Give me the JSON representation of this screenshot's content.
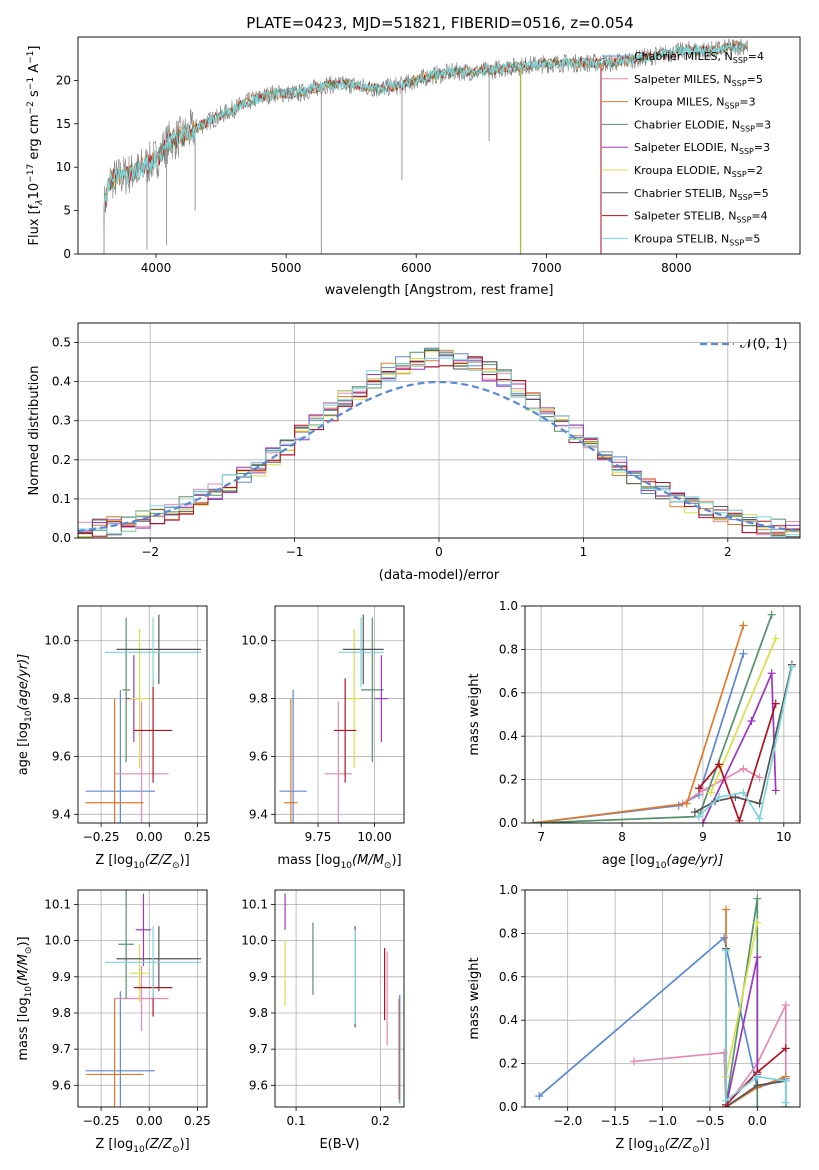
{
  "figure_title": "PLATE=0423, MJD=51821, FIBERID=0516, z=0.054",
  "colors": {
    "chabrier_miles": "#5b87d6",
    "salpeter_miles": "#e68ab5",
    "kroupa_miles": "#e07a2a",
    "chabrier_elodie": "#55926a",
    "salpeter_elodie": "#9b37c0",
    "kroupa_elodie": "#d8e04a",
    "chabrier_stelib": "#555555",
    "salpeter_stelib": "#b3121e",
    "kroupa_stelib": "#7cd6dc",
    "data": "#808080",
    "normal": "#5b87d6"
  },
  "chart_data": [
    {
      "id": "spectrum",
      "type": "line",
      "xlabel": "wavelength [Angstrom, rest frame]",
      "ylabel": "Flux [f",
      "ylabel_parts": [
        "10",
        "−17",
        " erg cm",
        "−2",
        " s",
        "−1",
        " A",
        "−1",
        "]"
      ],
      "xlim": [
        3400,
        8950
      ],
      "ylim": [
        0,
        25
      ],
      "xticks": [
        4000,
        5000,
        6000,
        7000,
        8000
      ],
      "yticks": [
        0,
        5,
        10,
        15,
        20
      ],
      "grid": false,
      "legend_placement": "upper-right",
      "legend": [
        {
          "name": "Chabrier MILES, N",
          "sub": "SSP",
          "suffix": "=4",
          "color": "chabrier_miles"
        },
        {
          "name": "Salpeter MILES, N",
          "sub": "SSP",
          "suffix": "=5",
          "color": "salpeter_miles"
        },
        {
          "name": "Kroupa MILES, N",
          "sub": "SSP",
          "suffix": "=3",
          "color": "kroupa_miles"
        },
        {
          "name": "Chabrier ELODIE, N",
          "sub": "SSP",
          "suffix": "=3",
          "color": "chabrier_elodie"
        },
        {
          "name": "Salpeter ELODIE, N",
          "sub": "SSP",
          "suffix": "=3",
          "color": "salpeter_elodie"
        },
        {
          "name": "Kroupa ELODIE, N",
          "sub": "SSP",
          "suffix": "=2",
          "color": "kroupa_elodie"
        },
        {
          "name": "Chabrier STELIB, N",
          "sub": "SSP",
          "suffix": "=5",
          "color": "chabrier_stelib"
        },
        {
          "name": "Salpeter STELIB, N",
          "sub": "SSP",
          "suffix": "=4",
          "color": "salpeter_stelib"
        },
        {
          "name": "Kroupa STELIB, N",
          "sub": "SSP",
          "suffix": "=5",
          "color": "kroupa_stelib"
        }
      ],
      "continuum": [
        [
          3600,
          5.5
        ],
        [
          3650,
          8.5
        ],
        [
          3750,
          9
        ],
        [
          3850,
          9.5
        ],
        [
          3950,
          10.5
        ],
        [
          4000,
          11
        ],
        [
          4100,
          13
        ],
        [
          4200,
          13.5
        ],
        [
          4300,
          14.5
        ],
        [
          4500,
          16
        ],
        [
          4700,
          17.5
        ],
        [
          4900,
          18.5
        ],
        [
          5100,
          18.5
        ],
        [
          5300,
          19.5
        ],
        [
          5500,
          19.5
        ],
        [
          5700,
          19
        ],
        [
          5900,
          19.5
        ],
        [
          6100,
          20.5
        ],
        [
          6300,
          21
        ],
        [
          6500,
          21
        ],
        [
          6700,
          21.5
        ],
        [
          6900,
          21.8
        ],
        [
          7100,
          22
        ],
        [
          7300,
          22
        ],
        [
          7500,
          22
        ],
        [
          7700,
          22.5
        ],
        [
          7900,
          23
        ],
        [
          8100,
          23.5
        ],
        [
          8300,
          23.5
        ],
        [
          8500,
          24
        ]
      ],
      "data_spikes": [
        [
          3600,
          0
        ],
        [
          3930,
          0.5
        ],
        [
          4080,
          1
        ],
        [
          4300,
          5
        ],
        [
          5270,
          0
        ],
        [
          5890,
          8.5
        ],
        [
          6560,
          13
        ],
        [
          6800,
          0
        ],
        [
          7420,
          0
        ]
      ]
    },
    {
      "id": "residuals",
      "type": "histogram",
      "xlabel": "(data-model)/error",
      "ylabel": "Normed distribution",
      "xlim": [
        -2.5,
        2.5
      ],
      "ylim": [
        0,
        0.55
      ],
      "xticks": [
        -2,
        -1,
        0,
        1,
        2
      ],
      "xtick_labels": [
        "−2",
        "−1",
        "0",
        "1",
        "2"
      ],
      "yticks": [
        0.0,
        0.1,
        0.2,
        0.3,
        0.4,
        0.5
      ],
      "ytick_labels": [
        "0.0",
        "0.1",
        "0.2",
        "0.3",
        "0.4",
        "0.5"
      ],
      "grid": true,
      "legend_placement": "upper-right",
      "legend_label": "𝒩(0, 1)",
      "bin_width": 0.1,
      "bin_start": -2.5,
      "base_mean": 0,
      "base_sigma": 1
    },
    {
      "id": "age_vs_Z",
      "type": "errorbar",
      "xlabel": "Z [log",
      "xlabel_rest": "(Z/Z",
      "ylabel": "age  [log",
      "ylabel_rest": "(age/yr)]",
      "xlim": [
        -0.37,
        0.3
      ],
      "ylim": [
        9.37,
        10.12
      ],
      "xticks": [
        -0.25,
        0.0,
        0.25
      ],
      "xtick_labels": [
        "−0.25",
        "0.00",
        "0.25"
      ],
      "yticks": [
        9.4,
        9.6,
        9.8,
        10.0
      ],
      "ytick_labels": [
        "9.4",
        "9.6",
        "9.8",
        "10.0"
      ],
      "grid": true,
      "points": [
        {
          "c": "chabrier_miles",
          "x": -0.15,
          "xe": 0.18,
          "y": 9.48,
          "ye": 0.35
        },
        {
          "c": "salpeter_miles",
          "x": -0.04,
          "xe": 0.14,
          "y": 9.54,
          "ye": 0.25
        },
        {
          "c": "kroupa_miles",
          "x": -0.18,
          "xe": 0.15,
          "y": 9.44,
          "ye": 0.36
        },
        {
          "c": "chabrier_elodie",
          "x": -0.12,
          "xe": 0.02,
          "y": 9.83,
          "ye": 0.25
        },
        {
          "c": "salpeter_elodie",
          "x": -0.08,
          "xe": 0.04,
          "y": 9.8,
          "ye": 0.15
        },
        {
          "c": "kroupa_elodie",
          "x": -0.05,
          "xe": 0.05,
          "y": 9.8,
          "ye": 0.24
        },
        {
          "c": "chabrier_stelib",
          "x": 0.05,
          "xe": 0.22,
          "y": 9.97,
          "ye": 0.12
        },
        {
          "c": "salpeter_stelib",
          "x": 0.02,
          "xe": 0.1,
          "y": 9.69,
          "ye": 0.18
        },
        {
          "c": "kroupa_stelib",
          "x": 0.02,
          "xe": 0.25,
          "y": 9.96,
          "ye": 0.12
        }
      ]
    },
    {
      "id": "age_vs_mass",
      "type": "errorbar",
      "xlabel": "mass [log",
      "xlabel_rest": "(M/M",
      "xlim": [
        9.56,
        10.13
      ],
      "ylim": [
        9.37,
        10.12
      ],
      "xticks": [
        9.75,
        10.0
      ],
      "xtick_labels": [
        "9.75",
        "10.00"
      ],
      "yticks": [
        9.4,
        9.6,
        9.8,
        10.0
      ],
      "ytick_labels": [
        "9.4",
        "9.6",
        "9.8",
        "10.0"
      ],
      "grid": true,
      "points": [
        {
          "c": "chabrier_miles",
          "x": 9.64,
          "xe": 0.06,
          "y": 9.48,
          "ye": 0.35
        },
        {
          "c": "salpeter_miles",
          "x": 9.84,
          "xe": 0.06,
          "y": 9.54,
          "ye": 0.25
        },
        {
          "c": "kroupa_miles",
          "x": 9.63,
          "xe": 0.03,
          "y": 9.44,
          "ye": 0.36
        },
        {
          "c": "chabrier_elodie",
          "x": 9.99,
          "xe": 0.05,
          "y": 9.83,
          "ye": 0.25
        },
        {
          "c": "salpeter_elodie",
          "x": 10.03,
          "xe": 0.03,
          "y": 9.8,
          "ye": 0.15
        },
        {
          "c": "kroupa_elodie",
          "x": 9.91,
          "xe": 0.03,
          "y": 9.8,
          "ye": 0.24
        },
        {
          "c": "chabrier_stelib",
          "x": 9.95,
          "xe": 0.09,
          "y": 9.97,
          "ye": 0.12
        },
        {
          "c": "salpeter_stelib",
          "x": 9.87,
          "xe": 0.05,
          "y": 9.69,
          "ye": 0.18
        },
        {
          "c": "kroupa_stelib",
          "x": 9.94,
          "xe": 0.1,
          "y": 9.96,
          "ye": 0.12
        }
      ]
    },
    {
      "id": "mass_weight_vs_age",
      "type": "line",
      "xlabel": "age  [log",
      "xlabel_rest": "(age/yr)]",
      "ylabel": "mass weight",
      "xlim": [
        6.8,
        10.2
      ],
      "ylim": [
        0,
        1.0
      ],
      "xticks": [
        7,
        8,
        9,
        10
      ],
      "xtick_labels": [
        "7",
        "8",
        "9",
        "10"
      ],
      "yticks": [
        0.0,
        0.2,
        0.4,
        0.6,
        0.8,
        1.0
      ],
      "ytick_labels": [
        "0.0",
        "0.2",
        "0.4",
        "0.6",
        "0.8",
        "1.0"
      ],
      "grid": true,
      "series": [
        {
          "c": "chabrier_miles",
          "x": [
            6.9,
            8.7,
            8.95,
            9.5
          ],
          "y": [
            0.0,
            0.08,
            0.13,
            0.78
          ]
        },
        {
          "c": "salpeter_miles",
          "x": [
            8.75,
            9.0,
            9.25,
            9.5,
            9.7
          ],
          "y": [
            0.09,
            0.15,
            0.2,
            0.25,
            0.21
          ]
        },
        {
          "c": "kroupa_miles",
          "x": [
            6.9,
            8.8,
            9.5
          ],
          "y": [
            0.0,
            0.09,
            0.91
          ]
        },
        {
          "c": "chabrier_elodie",
          "x": [
            6.9,
            8.95,
            9.85
          ],
          "y": [
            0.0,
            0.03,
            0.96
          ]
        },
        {
          "c": "salpeter_elodie",
          "x": [
            9.0,
            9.6,
            9.85,
            9.9
          ],
          "y": [
            0.0,
            0.47,
            0.69,
            0.15
          ]
        },
        {
          "c": "kroupa_elodie",
          "x": [
            9.1,
            9.9
          ],
          "y": [
            0.14,
            0.85
          ]
        },
        {
          "c": "chabrier_stelib",
          "x": [
            8.9,
            9.15,
            9.4,
            9.7,
            10.1
          ],
          "y": [
            0.05,
            0.1,
            0.12,
            0.09,
            0.73
          ]
        },
        {
          "c": "salpeter_stelib",
          "x": [
            8.95,
            9.2,
            9.45,
            9.9
          ],
          "y": [
            0.16,
            0.27,
            0.01,
            0.55
          ]
        },
        {
          "c": "kroupa_stelib",
          "x": [
            8.95,
            9.2,
            9.5,
            9.7,
            10.1
          ],
          "y": [
            0.03,
            0.12,
            0.14,
            0.02,
            0.72
          ]
        }
      ]
    },
    {
      "id": "mass_vs_Z",
      "type": "errorbar",
      "xlabel": "Z [log",
      "xlabel_rest": "(Z/Z",
      "ylabel": "mass [log",
      "ylabel_rest": "(M/M",
      "xlim": [
        -0.37,
        0.3
      ],
      "ylim": [
        9.54,
        10.14
      ],
      "xticks": [
        -0.25,
        0.0,
        0.25
      ],
      "xtick_labels": [
        "−0.25",
        "0.00",
        "0.25"
      ],
      "yticks": [
        9.6,
        9.7,
        9.8,
        9.9,
        10.0,
        10.1
      ],
      "ytick_labels": [
        "9.6",
        "9.7",
        "9.8",
        "9.9",
        "10.0",
        "10.1"
      ],
      "grid": true,
      "points": [
        {
          "c": "chabrier_miles",
          "x": -0.15,
          "xe": 0.18,
          "y": 9.64,
          "ye": 0.22
        },
        {
          "c": "salpeter_miles",
          "x": -0.04,
          "xe": 0.14,
          "y": 9.84,
          "ye": 0.09
        },
        {
          "c": "kroupa_miles",
          "x": -0.18,
          "xe": 0.15,
          "y": 9.63,
          "ye": 0.21
        },
        {
          "c": "chabrier_elodie",
          "x": -0.12,
          "xe": 0.04,
          "y": 9.99,
          "ye": 0.15
        },
        {
          "c": "salpeter_elodie",
          "x": -0.03,
          "xe": 0.04,
          "y": 10.03,
          "ye": 0.1
        },
        {
          "c": "kroupa_elodie",
          "x": -0.05,
          "xe": 0.05,
          "y": 9.91,
          "ye": 0.08
        },
        {
          "c": "chabrier_stelib",
          "x": 0.05,
          "xe": 0.22,
          "y": 9.95,
          "ye": 0.09
        },
        {
          "c": "salpeter_stelib",
          "x": 0.02,
          "xe": 0.1,
          "y": 9.87,
          "ye": 0.08
        },
        {
          "c": "kroupa_stelib",
          "x": 0.02,
          "xe": 0.25,
          "y": 9.94,
          "ye": 0.1
        }
      ]
    },
    {
      "id": "mass_vs_EBV",
      "type": "errorbar",
      "xlabel": "E(B-V)",
      "xlim": [
        0.075,
        0.228
      ],
      "ylim": [
        9.54,
        10.14
      ],
      "xticks": [
        0.1,
        0.2
      ],
      "xtick_labels": [
        "0.1",
        "0.2"
      ],
      "yticks": [
        9.6,
        9.7,
        9.8,
        9.9,
        10.0,
        10.1
      ],
      "ytick_labels": [
        "9.6",
        "9.7",
        "9.8",
        "9.9",
        "10.0",
        "10.1"
      ],
      "grid": true,
      "points": [
        {
          "c": "salpeter_elodie",
          "x": 0.087,
          "xe": 0,
          "y": 10.08,
          "ye": 0.05
        },
        {
          "c": "kroupa_elodie",
          "x": 0.087,
          "xe": 0,
          "y": 9.91,
          "ye": 0.09
        },
        {
          "c": "chabrier_elodie",
          "x": 0.12,
          "xe": 0,
          "y": 9.95,
          "ye": 0.1
        },
        {
          "c": "chabrier_stelib",
          "x": 0.17,
          "xe": 0,
          "y": 9.9,
          "ye": 0.14
        },
        {
          "c": "kroupa_stelib",
          "x": 0.17,
          "xe": 0,
          "y": 9.9,
          "ye": 0.13
        },
        {
          "c": "salpeter_stelib",
          "x": 0.205,
          "xe": 0,
          "y": 9.88,
          "ye": 0.1
        },
        {
          "c": "salpeter_miles",
          "x": 0.208,
          "xe": 0,
          "y": 9.84,
          "ye": 0.13
        },
        {
          "c": "kroupa_miles",
          "x": 0.222,
          "xe": 0,
          "y": 9.7,
          "ye": 0.14
        },
        {
          "c": "chabrier_miles",
          "x": 0.223,
          "xe": 0,
          "y": 9.7,
          "ye": 0.15
        }
      ]
    },
    {
      "id": "mass_weight_vs_Z",
      "type": "line",
      "xlabel": "Z [log",
      "xlabel_rest": "(Z/Z",
      "ylabel": "mass weight",
      "xlim": [
        -2.45,
        0.45
      ],
      "ylim": [
        0,
        1.0
      ],
      "xticks": [
        -2.0,
        -1.5,
        -1.0,
        -0.5,
        0.0
      ],
      "xtick_labels": [
        "−2.0",
        "−1.5",
        "−1.0",
        "−0.5",
        "0.0"
      ],
      "yticks": [
        0.0,
        0.2,
        0.4,
        0.6,
        0.8,
        1.0
      ],
      "ytick_labels": [
        "0.0",
        "0.2",
        "0.4",
        "0.6",
        "0.8",
        "1.0"
      ],
      "grid": true,
      "series": [
        {
          "c": "chabrier_miles",
          "x": [
            -2.3,
            -0.35,
            0.0,
            0.3
          ],
          "y": [
            0.05,
            0.78,
            0.09,
            0.13
          ]
        },
        {
          "c": "salpeter_miles",
          "x": [
            -1.3,
            -0.35,
            -0.33,
            0.0,
            0.3,
            0.3
          ],
          "y": [
            0.21,
            0.25,
            0.0,
            0.2,
            0.47,
            0.0
          ]
        },
        {
          "c": "kroupa_miles",
          "x": [
            -0.33,
            -0.33,
            0.0,
            0.3
          ],
          "y": [
            0.91,
            0.0,
            0.09,
            0.14
          ]
        },
        {
          "c": "chabrier_elodie",
          "x": [
            -0.33,
            0.0,
            0.0
          ],
          "y": [
            0.01,
            0.96,
            0.0
          ]
        },
        {
          "c": "salpeter_elodie",
          "x": [
            -0.33,
            0.0,
            0.0
          ],
          "y": [
            0.0,
            0.69,
            0.15
          ]
        },
        {
          "c": "kroupa_elodie",
          "x": [
            -0.33,
            0.0
          ],
          "y": [
            0.14,
            0.85
          ]
        },
        {
          "c": "chabrier_stelib",
          "x": [
            -0.33,
            -0.33,
            0.0,
            0.3,
            0.3
          ],
          "y": [
            0.73,
            0.0,
            0.1,
            0.12,
            0.0
          ]
        },
        {
          "c": "salpeter_stelib",
          "x": [
            -0.33,
            0.0,
            0.3
          ],
          "y": [
            0.01,
            0.16,
            0.27
          ]
        },
        {
          "c": "kroupa_stelib",
          "x": [
            -0.33,
            -0.33,
            0.0,
            0.3,
            0.3
          ],
          "y": [
            0.72,
            0.03,
            0.14,
            0.12,
            0.02
          ]
        }
      ]
    }
  ]
}
